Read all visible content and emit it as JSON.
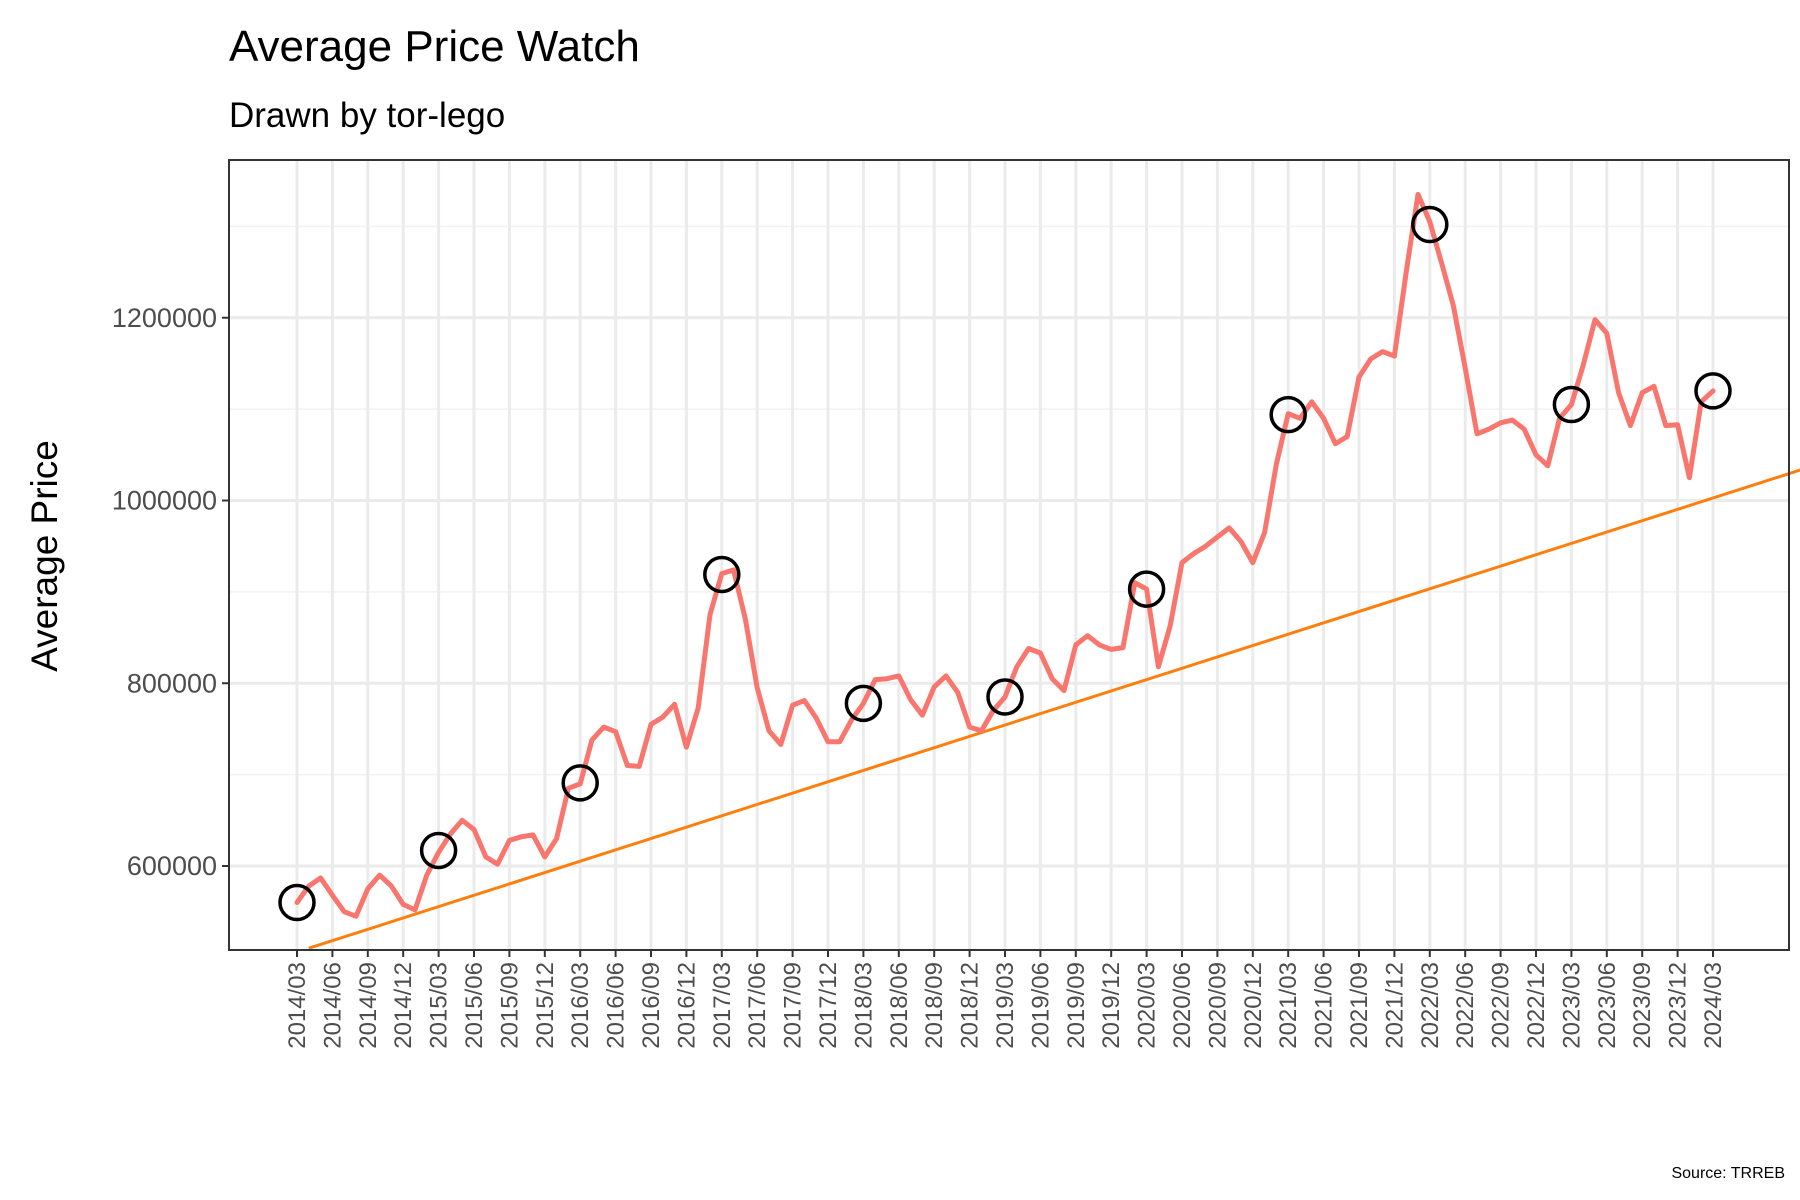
{
  "chart_data": {
    "type": "line",
    "title": "Average Price Watch",
    "subtitle": "Drawn by tor-lego",
    "xlabel": "",
    "ylabel": "Average Price",
    "caption": "Source: TRREB",
    "ylim": [
      510000,
      1350000
    ],
    "y_ticks": [
      600000,
      800000,
      1000000,
      1200000
    ],
    "x_tick_labels": [
      "2014/03",
      "2014/06",
      "2014/09",
      "2014/12",
      "2015/03",
      "2015/06",
      "2015/09",
      "2015/12",
      "2016/03",
      "2016/06",
      "2016/09",
      "2016/12",
      "2017/03",
      "2017/06",
      "2017/09",
      "2017/12",
      "2018/03",
      "2018/06",
      "2018/09",
      "2018/12",
      "2019/03",
      "2019/06",
      "2019/09",
      "2019/12",
      "2020/03",
      "2020/06",
      "2020/09",
      "2020/12",
      "2021/03",
      "2021/06",
      "2021/09",
      "2021/12",
      "2022/03",
      "2022/06",
      "2022/09",
      "2022/12",
      "2023/03",
      "2023/06",
      "2023/09",
      "2023/12",
      "2024/03"
    ],
    "grid": true,
    "colors": {
      "price_line": "#F8766D",
      "trend_line": "#FF7F0E",
      "markers": "#000000"
    },
    "series": [
      {
        "x": [
          "2014/03",
          "2014/04",
          "2014/05",
          "2014/06",
          "2014/07",
          "2014/08",
          "2014/09",
          "2014/10",
          "2014/11",
          "2014/12",
          "2015/01",
          "2015/02",
          "2015/03",
          "2015/04",
          "2015/05",
          "2015/06",
          "2015/07",
          "2015/08",
          "2015/09",
          "2015/10",
          "2015/11",
          "2015/12",
          "2016/01",
          "2016/02",
          "2016/03",
          "2016/04",
          "2016/05",
          "2016/06",
          "2016/07",
          "2016/08",
          "2016/09",
          "2016/10",
          "2016/11",
          "2016/12",
          "2017/01",
          "2017/02",
          "2017/03",
          "2017/04",
          "2017/05",
          "2017/06",
          "2017/07",
          "2017/08",
          "2017/09",
          "2017/10",
          "2017/11",
          "2017/12",
          "2018/01",
          "2018/02",
          "2018/03",
          "2018/04",
          "2018/05",
          "2018/06",
          "2018/07",
          "2018/08",
          "2018/09",
          "2018/10",
          "2018/11",
          "2018/12",
          "2019/01",
          "2019/02",
          "2019/03",
          "2019/04",
          "2019/05",
          "2019/06",
          "2019/07",
          "2019/08",
          "2019/09",
          "2019/10",
          "2019/11",
          "2019/12",
          "2020/01",
          "2020/02",
          "2020/03",
          "2020/04",
          "2020/05",
          "2020/06",
          "2020/07",
          "2020/08",
          "2020/09",
          "2020/10",
          "2020/11",
          "2020/12",
          "2021/01",
          "2021/02",
          "2021/03",
          "2021/04",
          "2021/05",
          "2021/06",
          "2021/07",
          "2021/08",
          "2021/09",
          "2021/10",
          "2021/11",
          "2021/12",
          "2022/01",
          "2022/02",
          "2022/03",
          "2022/04",
          "2022/05",
          "2022/06",
          "2022/07",
          "2022/08",
          "2022/09",
          "2022/10",
          "2022/11",
          "2022/12",
          "2023/01",
          "2023/02",
          "2023/03",
          "2023/04",
          "2023/05",
          "2023/06",
          "2023/07",
          "2023/08",
          "2023/09",
          "2023/10",
          "2023/11",
          "2023/12",
          "2024/01",
          "2024/02",
          "2024/03"
        ],
        "values": [
          560000,
          578000,
          587000,
          568000,
          550000,
          545000,
          575000,
          590000,
          578000,
          558000,
          552000,
          590000,
          615000,
          635000,
          650000,
          640000,
          610000,
          602000,
          628000,
          632000,
          634000,
          610000,
          630000,
          685000,
          690000,
          738000,
          752000,
          747000,
          710000,
          709000,
          755000,
          763000,
          777000,
          730000,
          773000,
          875000,
          920000,
          924000,
          870000,
          795000,
          748000,
          733000,
          776000,
          781000,
          762000,
          736000,
          736000,
          760000,
          778000,
          804000,
          805000,
          808000,
          782000,
          765000,
          796000,
          808000,
          790000,
          752000,
          748000,
          770000,
          785000,
          818000,
          838000,
          833000,
          805000,
          792000,
          842000,
          852000,
          842000,
          837000,
          839000,
          910000,
          903000,
          818000,
          863000,
          932000,
          942000,
          950000,
          960000,
          970000,
          955000,
          932000,
          965000,
          1040000,
          1095000,
          1090000,
          1108000,
          1090000,
          1062000,
          1070000,
          1135000,
          1155000,
          1163000,
          1158000,
          1250000,
          1335000,
          1305000,
          1260000,
          1213000,
          1145000,
          1073000,
          1078000,
          1085000,
          1088000,
          1078000,
          1050000,
          1038000,
          1090000,
          1105000,
          1148000,
          1198000,
          1183000,
          1118000,
          1082000,
          1118000,
          1125000,
          1082000,
          1083000,
          1025000,
          1108000,
          1120000
        ]
      }
    ],
    "highlighted_points": [
      {
        "x": "2014/03",
        "y": 560000
      },
      {
        "x": "2015/03",
        "y": 617000
      },
      {
        "x": "2016/03",
        "y": 691000
      },
      {
        "x": "2017/03",
        "y": 919000
      },
      {
        "x": "2018/03",
        "y": 778000
      },
      {
        "x": "2019/03",
        "y": 785000
      },
      {
        "x": "2020/03",
        "y": 903000
      },
      {
        "x": "2021/03",
        "y": 1094000
      },
      {
        "x": "2022/03",
        "y": 1302000
      },
      {
        "x": "2023/03",
        "y": 1105000
      },
      {
        "x": "2024/03",
        "y": 1120000
      }
    ],
    "trend_line": {
      "x_start": "2014/04",
      "y_start": 510000,
      "x_end": "2024/12",
      "y_end": 1040000
    }
  }
}
